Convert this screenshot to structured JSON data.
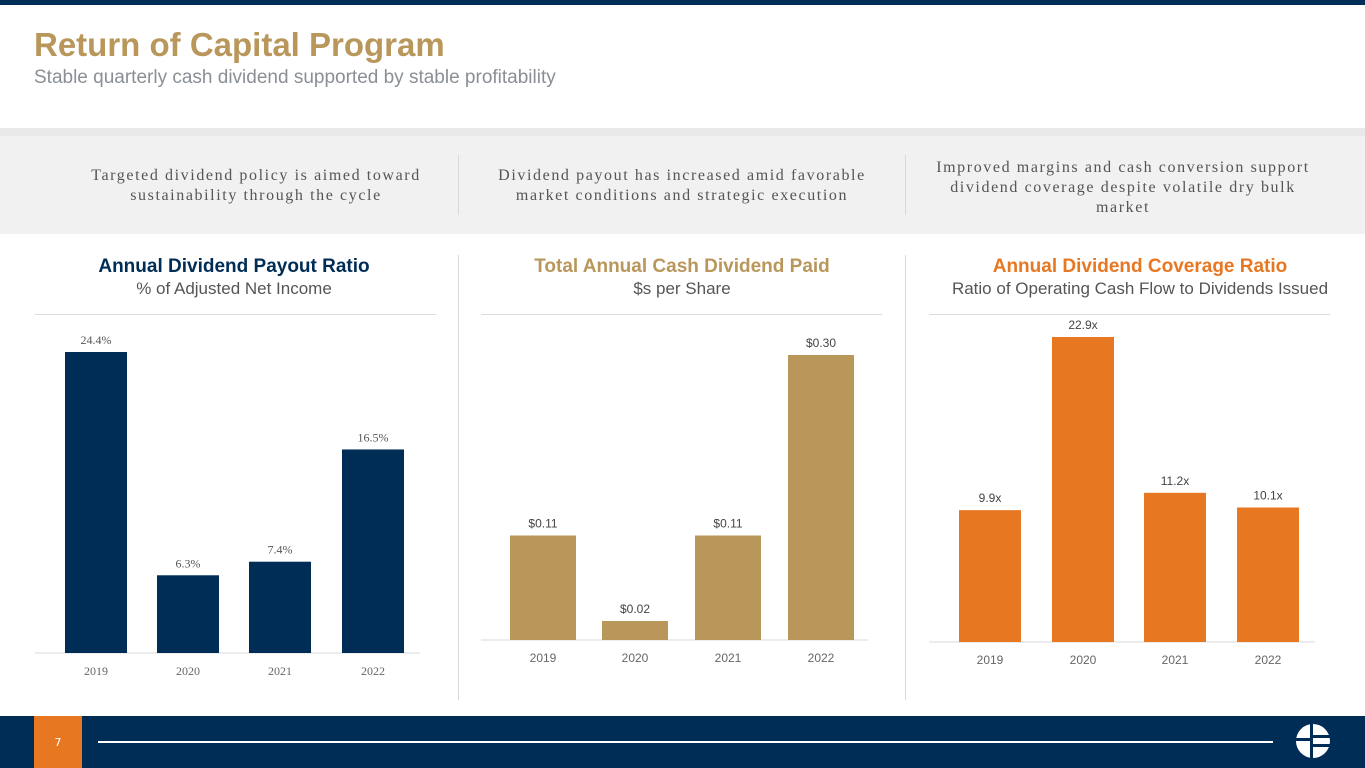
{
  "header": {
    "title": "Return of Capital Program",
    "subtitle": "Stable quarterly cash dividend supported by stable profitability"
  },
  "bullets": [
    "Targeted dividend policy is aimed toward sustainability through the cycle",
    "Dividend payout has increased amid favorable market conditions and strategic execution",
    "Improved margins and cash conversion support dividend coverage despite volatile dry bulk market"
  ],
  "footer": {
    "page_number": "7"
  },
  "colors": {
    "navy": "#002D56",
    "gold": "#B9975B",
    "orange": "#E87722"
  },
  "chart_data": [
    {
      "type": "bar",
      "title": "Annual Dividend Payout Ratio",
      "subtitle": "% of Adjusted Net Income",
      "categories": [
        "2019",
        "2020",
        "2021",
        "2022"
      ],
      "values": [
        24.4,
        6.3,
        7.4,
        16.5
      ],
      "labels": [
        "24.4%",
        "6.3%",
        "7.4%",
        "16.5%"
      ],
      "ylim": [
        0,
        24.4
      ],
      "color": "#002D56"
    },
    {
      "type": "bar",
      "title": "Total Annual Cash Dividend Paid",
      "subtitle": "$s per Share",
      "categories": [
        "2019",
        "2020",
        "2021",
        "2022"
      ],
      "values": [
        0.11,
        0.02,
        0.11,
        0.3
      ],
      "labels": [
        "$0.11",
        "$0.02",
        "$0.11",
        "$0.30"
      ],
      "ylim": [
        0,
        0.3
      ],
      "color": "#B9975B"
    },
    {
      "type": "bar",
      "title": "Annual Dividend Coverage Ratio",
      "subtitle": "Ratio of Operating Cash Flow to Dividends Issued",
      "categories": [
        "2019",
        "2020",
        "2021",
        "2022"
      ],
      "values": [
        9.9,
        22.9,
        11.2,
        10.1
      ],
      "labels": [
        "9.9x",
        "22.9x",
        "11.2x",
        "10.1x"
      ],
      "ylim": [
        0,
        22.9
      ],
      "color": "#E87722"
    }
  ]
}
